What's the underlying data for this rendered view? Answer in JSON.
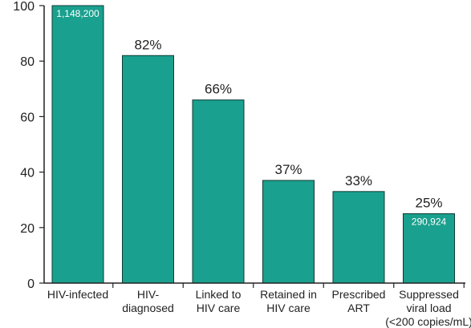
{
  "chart_data": {
    "type": "bar",
    "categories": [
      [
        "HIV-infected"
      ],
      [
        "HIV-",
        "diagnosed"
      ],
      [
        "Linked to",
        "HIV care"
      ],
      [
        "Retained in",
        "HIV care"
      ],
      [
        "Prescribed",
        "ART"
      ],
      [
        "Suppressed",
        "viral load",
        "(<200 copies/mL)"
      ]
    ],
    "values": [
      100,
      82,
      66,
      37,
      33,
      25
    ],
    "data_labels": [
      "",
      "82%",
      "66%",
      "37%",
      "33%",
      "25%"
    ],
    "inner_labels": [
      "1,148,200",
      "",
      "",
      "",
      "",
      "290,924"
    ],
    "ylim": [
      0,
      100
    ],
    "yticks": [
      0,
      20,
      40,
      60,
      80,
      100
    ],
    "title": "",
    "xlabel": "",
    "ylabel": "",
    "grid": false,
    "colors": {
      "bar": "#1aa08e",
      "bar_stroke": "#0d3b34",
      "axis": "#222222"
    }
  }
}
